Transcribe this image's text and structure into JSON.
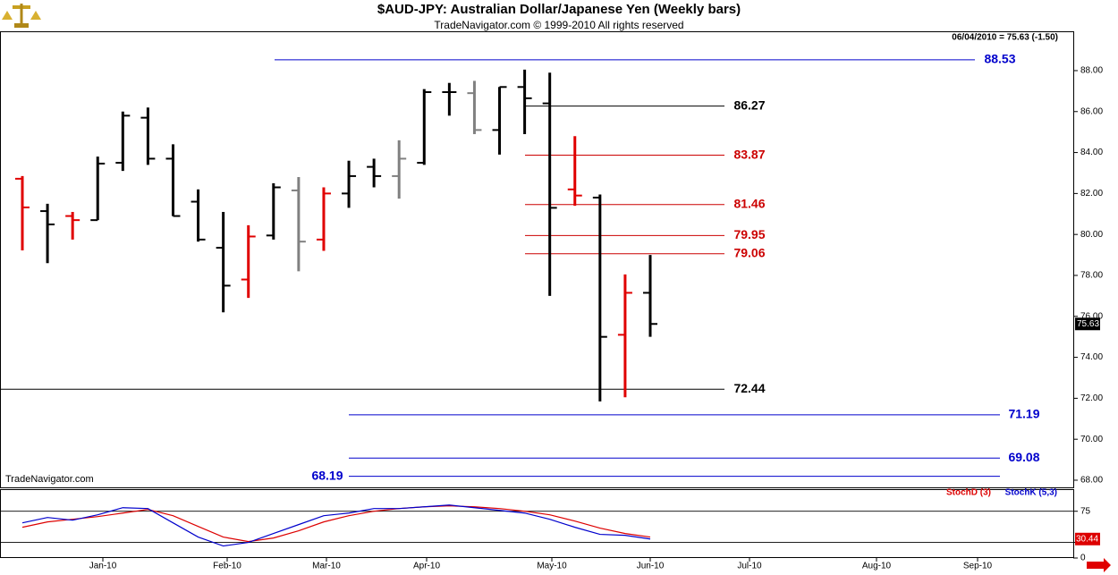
{
  "chart_data": [
    {
      "type": "ohlc",
      "title": "$AUD-JPY:  Australian Dollar/Japanese Yen  (Weekly bars)",
      "subtitle": "TradeNavigator.com © 1999-2010 All rights reserved",
      "status": "06/04/2010 = 75.63 (-1.50)",
      "watermark": "TradeNavigator.com",
      "open": [
        82.72,
        81.14,
        80.9,
        80.7,
        83.5,
        85.7,
        83.7,
        81.6,
        79.35,
        77.8,
        79.95,
        82.15,
        79.75,
        82.0,
        83.3,
        82.85,
        83.5,
        86.95,
        86.9,
        85.1,
        87.2,
        86.4,
        82.2,
        81.8,
        75.1,
        77.15
      ],
      "high": [
        82.85,
        81.5,
        81.1,
        83.8,
        86.0,
        86.2,
        84.4,
        82.2,
        81.1,
        80.45,
        82.5,
        82.8,
        82.3,
        83.6,
        83.7,
        84.6,
        87.1,
        87.4,
        87.5,
        87.2,
        88.05,
        87.9,
        84.8,
        81.95,
        78.05,
        79.0
      ],
      "low": [
        79.22,
        78.6,
        79.75,
        80.7,
        83.1,
        83.4,
        80.9,
        79.65,
        76.2,
        76.9,
        79.75,
        78.2,
        79.2,
        81.3,
        82.3,
        81.75,
        83.4,
        85.8,
        84.9,
        83.9,
        84.9,
        77.0,
        81.4,
        71.85,
        72.05,
        75.0
      ],
      "close": [
        81.32,
        80.49,
        80.7,
        83.46,
        85.8,
        83.7,
        80.9,
        79.75,
        77.5,
        79.9,
        82.3,
        79.65,
        82.0,
        82.85,
        82.85,
        83.7,
        86.95,
        86.95,
        85.1,
        87.2,
        86.65,
        81.3,
        81.9,
        75.0,
        77.15,
        75.63
      ],
      "colors": [
        "#e00000",
        "#000000",
        "#e00000",
        "#000000",
        "#000000",
        "#000000",
        "#000000",
        "#000000",
        "#000000",
        "#e00000",
        "#000000",
        "#808080",
        "#e00000",
        "#000000",
        "#000000",
        "#808080",
        "#000000",
        "#000000",
        "#808080",
        "#000000",
        "#000000",
        "#000000",
        "#e00000",
        "#000000",
        "#e00000",
        "#000000"
      ],
      "levels": [
        {
          "value": 88.53,
          "color": "#0000cc"
        },
        {
          "value": 86.27,
          "color": "#000000"
        },
        {
          "value": 83.87,
          "color": "#cc0000"
        },
        {
          "value": 81.46,
          "color": "#cc0000"
        },
        {
          "value": 79.95,
          "color": "#cc0000"
        },
        {
          "value": 79.06,
          "color": "#cc0000"
        },
        {
          "value": 72.44,
          "color": "#000000"
        },
        {
          "value": 71.19,
          "color": "#0000cc"
        },
        {
          "value": 69.08,
          "color": "#0000cc"
        },
        {
          "value": 68.19,
          "color": "#0000cc"
        }
      ],
      "xlabels": [
        "Jan-10",
        "Feb-10",
        "Mar-10",
        "Apr-10",
        "May-10",
        "Jun-10",
        "Jul-10",
        "Aug-10",
        "Sep-10"
      ],
      "ylim": [
        67.65,
        89.92
      ],
      "yticks": [
        {
          "value": 68,
          "label": "68.00"
        },
        {
          "value": 70,
          "label": "70.00"
        },
        {
          "value": 72,
          "label": "72.00"
        },
        {
          "value": 74,
          "label": "74.00"
        },
        {
          "value": 76,
          "label": "76.00"
        },
        {
          "value": 78,
          "label": "78.00"
        },
        {
          "value": 80,
          "label": "80.00"
        },
        {
          "value": 82,
          "label": "82.00"
        },
        {
          "value": 84,
          "label": "84.00"
        },
        {
          "value": 86,
          "label": "86.00"
        },
        {
          "value": 88,
          "label": "88.00"
        }
      ]
    },
    {
      "type": "line",
      "series": [
        {
          "name": "StochD (3)",
          "color": "#dd0000",
          "values": [
            49.3,
            57.9,
            62.1,
            66.4,
            72.1,
            77.9,
            67.9,
            50.7,
            33.6,
            26.4,
            32.1,
            43.6,
            57.9,
            67.9,
            75,
            79.3,
            82.1,
            83.6,
            82.1,
            79.3,
            75,
            69.3,
            59.3,
            47.9,
            39.3,
            33.6
          ]
        },
        {
          "name": "StochK (5,3)",
          "color": "#0000cc",
          "values": [
            56.4,
            65,
            60.7,
            69.3,
            80.7,
            79.3,
            56.4,
            33.6,
            19.3,
            25,
            39.3,
            53.6,
            67.9,
            72.1,
            79.3,
            79.3,
            82.1,
            85,
            80.7,
            76.4,
            72.1,
            62.1,
            49.3,
            37.9,
            36.4,
            30.44
          ]
        }
      ],
      "ylim": [
        0,
        109
      ],
      "yticks": [
        0,
        25,
        75
      ]
    }
  ]
}
